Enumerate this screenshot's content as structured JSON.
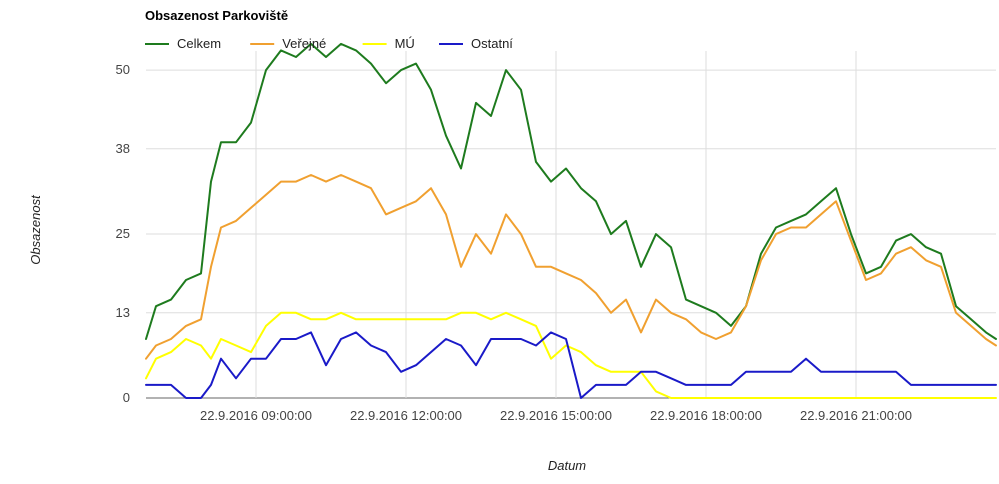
{
  "chart_data": {
    "type": "line",
    "title": "Obsazenost Parkoviště",
    "xlabel": "Datum",
    "ylabel": "Obsazenost",
    "ylim": [
      0,
      52
    ],
    "y_ticks": [
      0,
      13,
      25,
      38,
      50
    ],
    "x_ticks": [
      "22.9.2016 09:00:00",
      "22.9.2016 12:00:00",
      "22.9.2016 15:00:00",
      "22.9.2016 18:00:00",
      "22.9.2016 21:00:00"
    ],
    "x_unit": "hours",
    "xlim": [
      6.8,
      23.8
    ],
    "x_tick_values": [
      9,
      12,
      15,
      18,
      21
    ],
    "grid": true,
    "legend_position": "top-left",
    "x": [
      6.8,
      7.0,
      7.3,
      7.6,
      7.9,
      8.1,
      8.3,
      8.6,
      8.9,
      9.2,
      9.5,
      9.8,
      10.1,
      10.4,
      10.7,
      11.0,
      11.3,
      11.6,
      11.9,
      12.2,
      12.5,
      12.8,
      13.1,
      13.4,
      13.7,
      14.0,
      14.3,
      14.6,
      14.9,
      15.2,
      15.5,
      15.8,
      16.1,
      16.4,
      16.7,
      17.0,
      17.3,
      17.6,
      17.9,
      18.2,
      18.5,
      18.8,
      19.1,
      19.4,
      19.7,
      20.0,
      20.3,
      20.6,
      20.9,
      21.2,
      21.5,
      21.8,
      22.1,
      22.4,
      22.7,
      23.0,
      23.3,
      23.6,
      23.8
    ],
    "series": [
      {
        "name": "Celkem",
        "color": "#1e7b1e",
        "values": [
          9,
          14,
          15,
          18,
          19,
          33,
          39,
          39,
          42,
          50,
          53,
          52,
          54,
          52,
          54,
          53,
          51,
          48,
          50,
          51,
          47,
          40,
          35,
          45,
          43,
          50,
          47,
          36,
          33,
          35,
          32,
          30,
          25,
          27,
          20,
          25,
          23,
          15,
          14,
          13,
          11,
          14,
          22,
          26,
          27,
          28,
          30,
          32,
          25,
          19,
          20,
          24,
          25,
          23,
          22,
          14,
          12,
          10,
          9
        ]
      },
      {
        "name": "Veřejné",
        "color": "#f0a030",
        "values": [
          6,
          8,
          9,
          11,
          12,
          20,
          26,
          27,
          29,
          31,
          33,
          33,
          34,
          33,
          34,
          33,
          32,
          28,
          29,
          30,
          32,
          28,
          20,
          25,
          22,
          28,
          25,
          20,
          20,
          19,
          18,
          16,
          13,
          15,
          10,
          15,
          13,
          12,
          10,
          9,
          10,
          14,
          21,
          25,
          26,
          26,
          28,
          30,
          24,
          18,
          19,
          22,
          23,
          21,
          20,
          13,
          11,
          9,
          8
        ]
      },
      {
        "name": "MÚ",
        "color": "#ffff00",
        "values": [
          3,
          6,
          7,
          9,
          8,
          6,
          9,
          8,
          7,
          11,
          13,
          13,
          12,
          12,
          13,
          12,
          12,
          12,
          12,
          12,
          12,
          12,
          13,
          13,
          12,
          13,
          12,
          11,
          6,
          8,
          7,
          5,
          4,
          4,
          4,
          1,
          0,
          0,
          0,
          0,
          0,
          0,
          0,
          0,
          0,
          0,
          0,
          0,
          0,
          0,
          0,
          0,
          0,
          0,
          0,
          0,
          0,
          0,
          0
        ]
      },
      {
        "name": "Ostatní",
        "color": "#1a1ac8",
        "values": [
          2,
          2,
          2,
          0,
          0,
          2,
          6,
          3,
          6,
          6,
          9,
          9,
          10,
          5,
          9,
          10,
          8,
          7,
          4,
          5,
          7,
          9,
          8,
          5,
          9,
          9,
          9,
          8,
          10,
          9,
          0,
          2,
          2,
          2,
          4,
          4,
          3,
          2,
          2,
          2,
          2,
          4,
          4,
          4,
          4,
          6,
          4,
          4,
          4,
          4,
          4,
          4,
          2,
          2,
          2,
          2,
          2,
          2,
          2
        ]
      }
    ]
  }
}
